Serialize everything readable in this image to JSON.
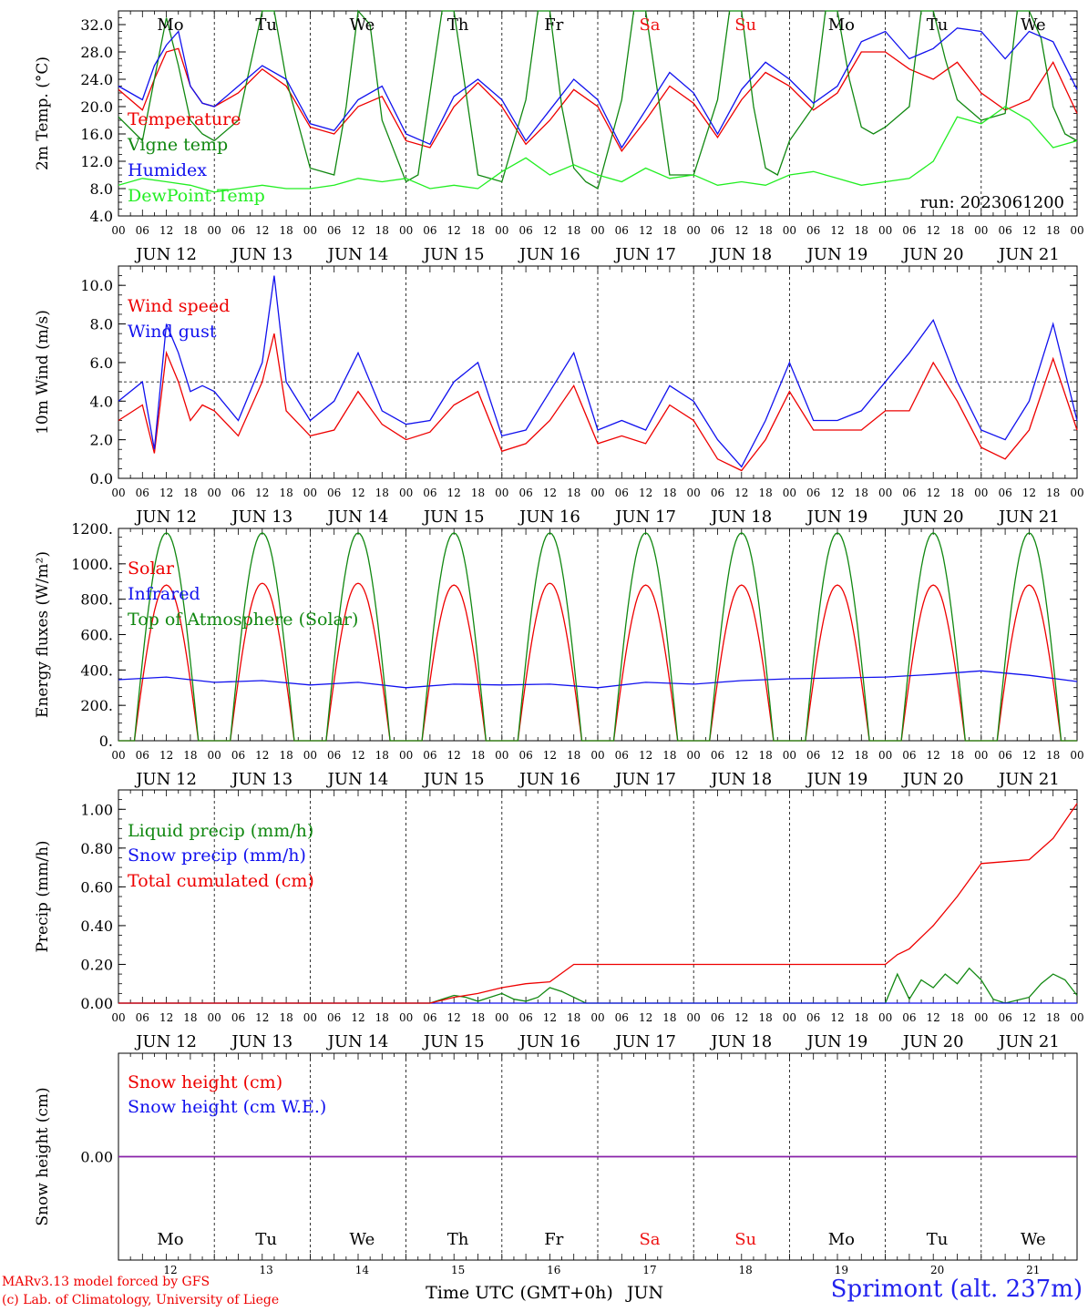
{
  "run_label": "run: 2023061200",
  "footer": {
    "credit_line1": "MARv3.13 model forced by GFS",
    "credit_line2": "(c) Lab. of Climatology, University of Liege",
    "station": "Sprimont (alt. 237m)",
    "time_label": "Time UTC (GMT+0h)",
    "month_label": "JUN"
  },
  "colors": {
    "red": "#ee0000",
    "green": "#118811",
    "blue": "#1111ee",
    "lightgreen": "#22ee22",
    "purple": "#8822aa",
    "weekend": "#ee1111"
  },
  "day_names": [
    "Mo",
    "Tu",
    "We",
    "Th",
    "Fr",
    "Sa",
    "Su",
    "Mo",
    "Tu",
    "We"
  ],
  "weekend_days": [
    5,
    6
  ],
  "date_labels": [
    "JUN 12",
    "JUN 13",
    "JUN 14",
    "JUN 15",
    "JUN 16",
    "JUN 17",
    "JUN 18",
    "JUN 19",
    "JUN 20",
    "JUN 21"
  ],
  "day_numbers": [
    "12",
    "13",
    "14",
    "15",
    "16",
    "17",
    "18",
    "19",
    "20",
    "21"
  ],
  "hour_ticks": [
    "00",
    "06",
    "12",
    "18"
  ],
  "chart_data": [
    {
      "type": "line",
      "ylabel": "2m Temp. (°C)",
      "ylim": [
        4,
        34
      ],
      "yticks": [
        "4.0",
        "8.0",
        "12.0",
        "16.0",
        "20.0",
        "24.0",
        "28.0",
        "32.0"
      ],
      "x_unit": "hours since JUN 12 00 UTC",
      "grid": "vertical dotted lines at 00 UTC",
      "legend_position": "left",
      "series": [
        {
          "name": "Temperature",
          "color": "red",
          "x": [
            0,
            6,
            9,
            12,
            15,
            18,
            21,
            24,
            30,
            36,
            42,
            48,
            54,
            60,
            66,
            72,
            78,
            84,
            90,
            96,
            102,
            108,
            114,
            120,
            126,
            132,
            138,
            144,
            150,
            156,
            162,
            168,
            174,
            180,
            186,
            192,
            198,
            204,
            210,
            216,
            222,
            228,
            234,
            240
          ],
          "y": [
            22.5,
            19.5,
            24,
            28,
            28.5,
            23,
            20.5,
            20,
            22,
            25.5,
            23,
            17,
            16,
            20,
            21.5,
            15,
            14,
            20,
            23.5,
            20,
            14.5,
            18,
            22.5,
            20,
            13.5,
            18,
            23,
            20.5,
            15.5,
            21,
            25,
            23,
            19.5,
            22,
            28,
            28,
            25.5,
            24,
            26.5,
            22,
            19.5,
            21,
            26.5,
            19
          ]
        },
        {
          "name": "Vigne temp",
          "color": "green",
          "x": [
            0,
            6,
            9,
            12,
            15,
            18,
            21,
            24,
            30,
            33,
            36,
            39,
            42,
            48,
            54,
            57,
            60,
            63,
            66,
            72,
            75,
            78,
            81,
            84,
            87,
            90,
            96,
            102,
            105,
            108,
            111,
            114,
            117,
            120,
            126,
            129,
            132,
            135,
            138,
            144,
            150,
            153,
            156,
            159,
            162,
            165,
            168,
            174,
            177,
            180,
            183,
            186,
            189,
            192,
            198,
            201,
            204,
            207,
            210,
            216,
            222,
            225,
            228,
            231,
            234,
            237,
            240
          ],
          "y": [
            18.5,
            15,
            24,
            33,
            26,
            18,
            16,
            15,
            18,
            26,
            34,
            34,
            24,
            11,
            10,
            20,
            34,
            32,
            18,
            9,
            10,
            22,
            34,
            34,
            22,
            10,
            9,
            21,
            34,
            34,
            20,
            11,
            9,
            8,
            21,
            34,
            34,
            22,
            10,
            10,
            21,
            34,
            34,
            20,
            11,
            10,
            15,
            20,
            34,
            34,
            24,
            17,
            16,
            17,
            20,
            34,
            34,
            27,
            21,
            18,
            19,
            34,
            34,
            30,
            20,
            16,
            15
          ]
        },
        {
          "name": "Humidex",
          "color": "blue",
          "x": [
            0,
            6,
            9,
            12,
            15,
            18,
            21,
            24,
            30,
            36,
            42,
            48,
            54,
            60,
            66,
            72,
            78,
            84,
            90,
            96,
            102,
            108,
            114,
            120,
            126,
            132,
            138,
            144,
            150,
            156,
            162,
            168,
            174,
            180,
            186,
            192,
            198,
            204,
            210,
            216,
            222,
            228,
            234,
            240
          ],
          "y": [
            23,
            21,
            26,
            29,
            31,
            23,
            20.5,
            20,
            23,
            26,
            24,
            17.5,
            16.5,
            21,
            23,
            16,
            14.5,
            21.5,
            24,
            21,
            15,
            19.5,
            24,
            21,
            14,
            19.5,
            25,
            22,
            16,
            22.5,
            26.5,
            24,
            20.5,
            23,
            29.5,
            31,
            27,
            28.5,
            31.5,
            31,
            27,
            31,
            29.5,
            22.5
          ]
        },
        {
          "name": "DewPoint Temp",
          "color": "lightgreen",
          "x": [
            0,
            6,
            12,
            18,
            24,
            30,
            36,
            42,
            48,
            54,
            60,
            66,
            72,
            78,
            84,
            90,
            96,
            102,
            108,
            114,
            120,
            126,
            132,
            138,
            144,
            150,
            156,
            162,
            168,
            174,
            180,
            186,
            192,
            198,
            204,
            210,
            216,
            222,
            228,
            234,
            240
          ],
          "y": [
            8.5,
            9.5,
            9,
            8.5,
            7.5,
            8,
            8.5,
            8,
            8,
            8.5,
            9.5,
            9,
            9.5,
            8,
            8.5,
            8,
            10.5,
            12.5,
            10,
            11.5,
            10,
            9,
            11,
            9.5,
            10,
            8.5,
            9,
            8.5,
            10,
            10.5,
            9.5,
            8.5,
            9,
            9.5,
            12,
            18.5,
            17.5,
            20,
            18,
            14,
            15
          ]
        }
      ]
    },
    {
      "type": "line",
      "ylabel": "10m Wind (m/s)",
      "ylim": [
        0,
        11
      ],
      "yticks": [
        "0.0",
        "2.0",
        "4.0",
        "6.0",
        "8.0",
        "10.0"
      ],
      "reference_line": 5,
      "legend_position": "left",
      "series": [
        {
          "name": "Wind speed",
          "color": "red",
          "x": [
            0,
            6,
            9,
            12,
            15,
            18,
            21,
            24,
            30,
            36,
            39,
            42,
            48,
            54,
            60,
            66,
            72,
            78,
            84,
            90,
            96,
            102,
            108,
            114,
            120,
            126,
            132,
            138,
            144,
            150,
            156,
            162,
            168,
            174,
            180,
            186,
            192,
            198,
            204,
            210,
            216,
            222,
            228,
            234,
            240
          ],
          "y": [
            3,
            3.8,
            1.3,
            6.5,
            5,
            3,
            3.8,
            3.5,
            2.2,
            5,
            7.5,
            3.5,
            2.2,
            2.5,
            4.5,
            2.8,
            2,
            2.4,
            3.8,
            4.5,
            1.4,
            1.8,
            3,
            4.8,
            1.8,
            2.2,
            1.8,
            3.8,
            3,
            1,
            0.4,
            2,
            4.5,
            2.5,
            2.5,
            2.5,
            3.5,
            3.5,
            6,
            4,
            1.6,
            1,
            2.5,
            6.2,
            2.5
          ]
        },
        {
          "name": "Wind gust",
          "color": "blue",
          "x": [
            0,
            6,
            9,
            12,
            15,
            18,
            21,
            24,
            30,
            36,
            39,
            42,
            48,
            54,
            60,
            66,
            72,
            78,
            84,
            90,
            96,
            102,
            108,
            114,
            120,
            126,
            132,
            138,
            144,
            150,
            156,
            162,
            168,
            174,
            180,
            186,
            192,
            198,
            204,
            210,
            216,
            222,
            228,
            234,
            240
          ],
          "y": [
            4,
            5,
            1.5,
            8,
            6.5,
            4.5,
            4.8,
            4.5,
            3,
            6,
            10.5,
            5,
            3,
            4,
            6.5,
            3.5,
            2.8,
            3,
            5,
            6,
            2.2,
            2.5,
            4.5,
            6.5,
            2.5,
            3,
            2.5,
            4.8,
            4,
            2,
            0.6,
            3,
            6,
            3,
            3,
            3.5,
            5,
            6.5,
            8.2,
            5,
            2.5,
            2,
            4,
            8,
            3
          ]
        }
      ]
    },
    {
      "type": "area",
      "ylabel": "Energy fluxes (W/m²)",
      "ylim": [
        0,
        1200
      ],
      "yticks": [
        "0.",
        "200.",
        "400.",
        "600.",
        "800.",
        "1000.",
        "1200."
      ],
      "legend_position": "left",
      "diurnal": {
        "sunrise_hour": 4,
        "sunset_hour": 20
      },
      "series": [
        {
          "name": "Solar",
          "color": "red",
          "daily_peak": [
            880,
            890,
            890,
            880,
            890,
            880,
            880,
            880,
            880,
            880
          ]
        },
        {
          "name": "Infrared",
          "color": "blue",
          "x": [
            0,
            12,
            24,
            36,
            48,
            60,
            72,
            84,
            96,
            108,
            120,
            132,
            144,
            156,
            168,
            180,
            192,
            204,
            216,
            228,
            240
          ],
          "y": [
            345,
            360,
            330,
            340,
            315,
            330,
            300,
            320,
            315,
            320,
            300,
            330,
            320,
            340,
            350,
            355,
            360,
            375,
            395,
            370,
            335
          ]
        },
        {
          "name": "Top of Atmosphere (Solar)",
          "color": "green",
          "daily_peak": [
            1175,
            1175,
            1175,
            1175,
            1175,
            1175,
            1175,
            1175,
            1175,
            1175
          ]
        }
      ]
    },
    {
      "type": "line",
      "ylabel": "Precip (mm/h)",
      "ylim": [
        0,
        1.1
      ],
      "yticks": [
        "0.00",
        "0.20",
        "0.40",
        "0.60",
        "0.80",
        "1.00"
      ],
      "legend_position": "left",
      "series": [
        {
          "name": "Liquid precip (mm/h)",
          "color": "green",
          "x": [
            0,
            78,
            81,
            84,
            87,
            90,
            96,
            99,
            102,
            105,
            108,
            111,
            114,
            117,
            120,
            192,
            195,
            198,
            201,
            204,
            207,
            210,
            213,
            216,
            219,
            222,
            228,
            231,
            234,
            237,
            240
          ],
          "y": [
            0,
            0,
            0.02,
            0.04,
            0.03,
            0.01,
            0.05,
            0.02,
            0.01,
            0.03,
            0.08,
            0.06,
            0.03,
            0,
            0,
            0,
            0.15,
            0.02,
            0.12,
            0.08,
            0.15,
            0.1,
            0.18,
            0.12,
            0.02,
            0,
            0.03,
            0.1,
            0.15,
            0.12,
            0.04
          ]
        },
        {
          "name": "Snow precip (mm/h)",
          "color": "blue",
          "x": [
            0,
            240
          ],
          "y": [
            0,
            0
          ]
        },
        {
          "name": "Total cumulated (cm)",
          "color": "red",
          "x": [
            0,
            78,
            84,
            90,
            96,
            102,
            108,
            114,
            192,
            195,
            198,
            204,
            210,
            216,
            222,
            228,
            234,
            240
          ],
          "y": [
            0,
            0,
            0.03,
            0.05,
            0.08,
            0.1,
            0.11,
            0.2,
            0.2,
            0.25,
            0.28,
            0.4,
            0.55,
            0.72,
            0.73,
            0.74,
            0.85,
            1.03
          ]
        }
      ]
    },
    {
      "type": "line",
      "ylabel": "Snow height (cm)",
      "ylim": [
        -1,
        1
      ],
      "yticks": [
        "0.00"
      ],
      "legend_position": "left",
      "series": [
        {
          "name": "Snow height (cm)",
          "color": "red",
          "x": [
            0,
            240
          ],
          "y": [
            0,
            0
          ]
        },
        {
          "name": "Snow height (cm W.E.)",
          "color": "blue",
          "x": [
            0,
            240
          ],
          "y": [
            0,
            0
          ]
        }
      ]
    }
  ]
}
